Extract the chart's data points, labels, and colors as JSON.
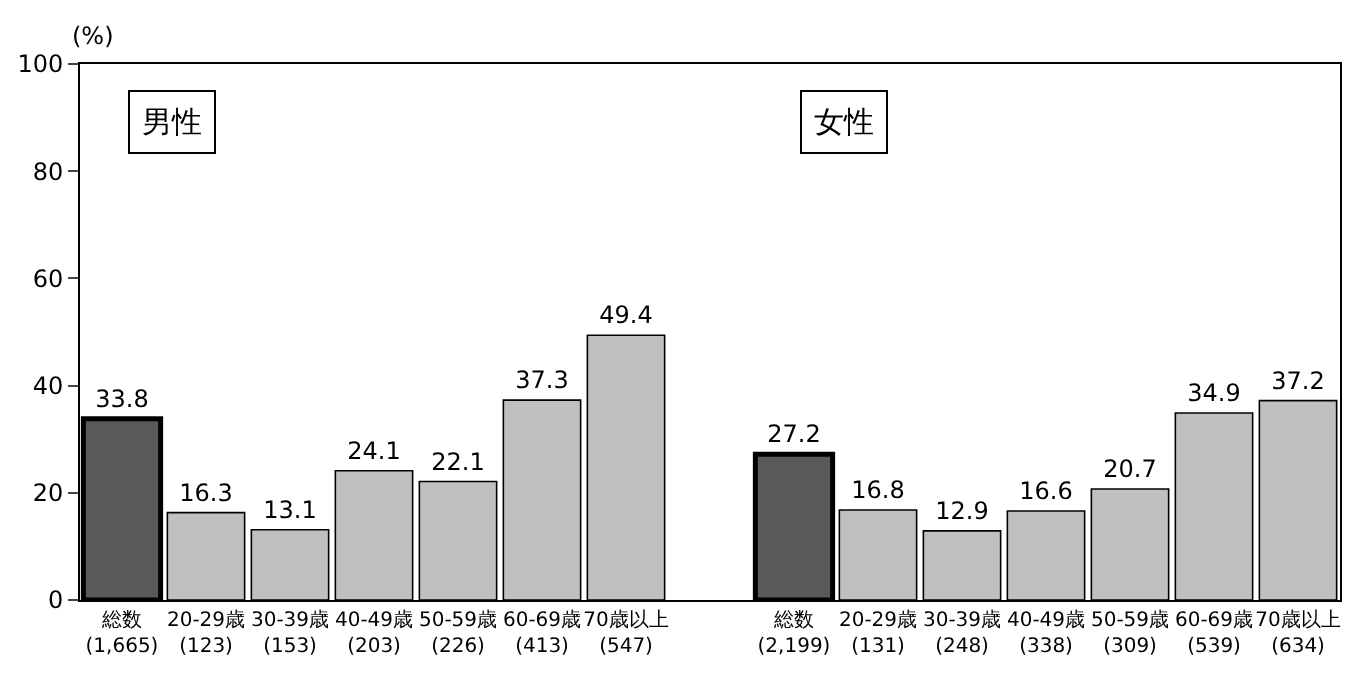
{
  "chart_data": {
    "type": "bar",
    "ylabel": "(%)",
    "categories": [
      "総数\n(1,665)",
      "20-29歳\n(123)",
      "30-39歳\n(153)",
      "40-49歳\n(203)",
      "50-59歳\n(226)",
      "60-69歳\n(413)",
      "70歳以上\n(547)",
      null,
      "総数\n(2,199)",
      "20-29歳\n(131)",
      "30-39歳\n(248)",
      "40-49歳\n(338)",
      "50-59歳\n(309)",
      "60-69歳\n(539)",
      "70歳以上\n(634)"
    ],
    "values": [
      33.8,
      16.3,
      13.1,
      24.1,
      22.1,
      37.3,
      49.4,
      null,
      27.2,
      16.8,
      12.9,
      16.6,
      20.7,
      34.9,
      37.2
    ],
    "colors": [
      "#595959",
      "#c0c0c0",
      "#c0c0c0",
      "#c0c0c0",
      "#c0c0c0",
      "#c0c0c0",
      "#c0c0c0",
      "#ffffff",
      "#595959",
      "#c0c0c0",
      "#c0c0c0",
      "#c0c0c0",
      "#c0c0c0",
      "#c0c0c0",
      "#c0c0c0"
    ],
    "data_labels": true,
    "ylim": [
      0,
      100
    ],
    "yticks": [
      0,
      20,
      40,
      60,
      80,
      100
    ],
    "grid": false,
    "annotations": [
      "男性",
      "女性"
    ]
  }
}
